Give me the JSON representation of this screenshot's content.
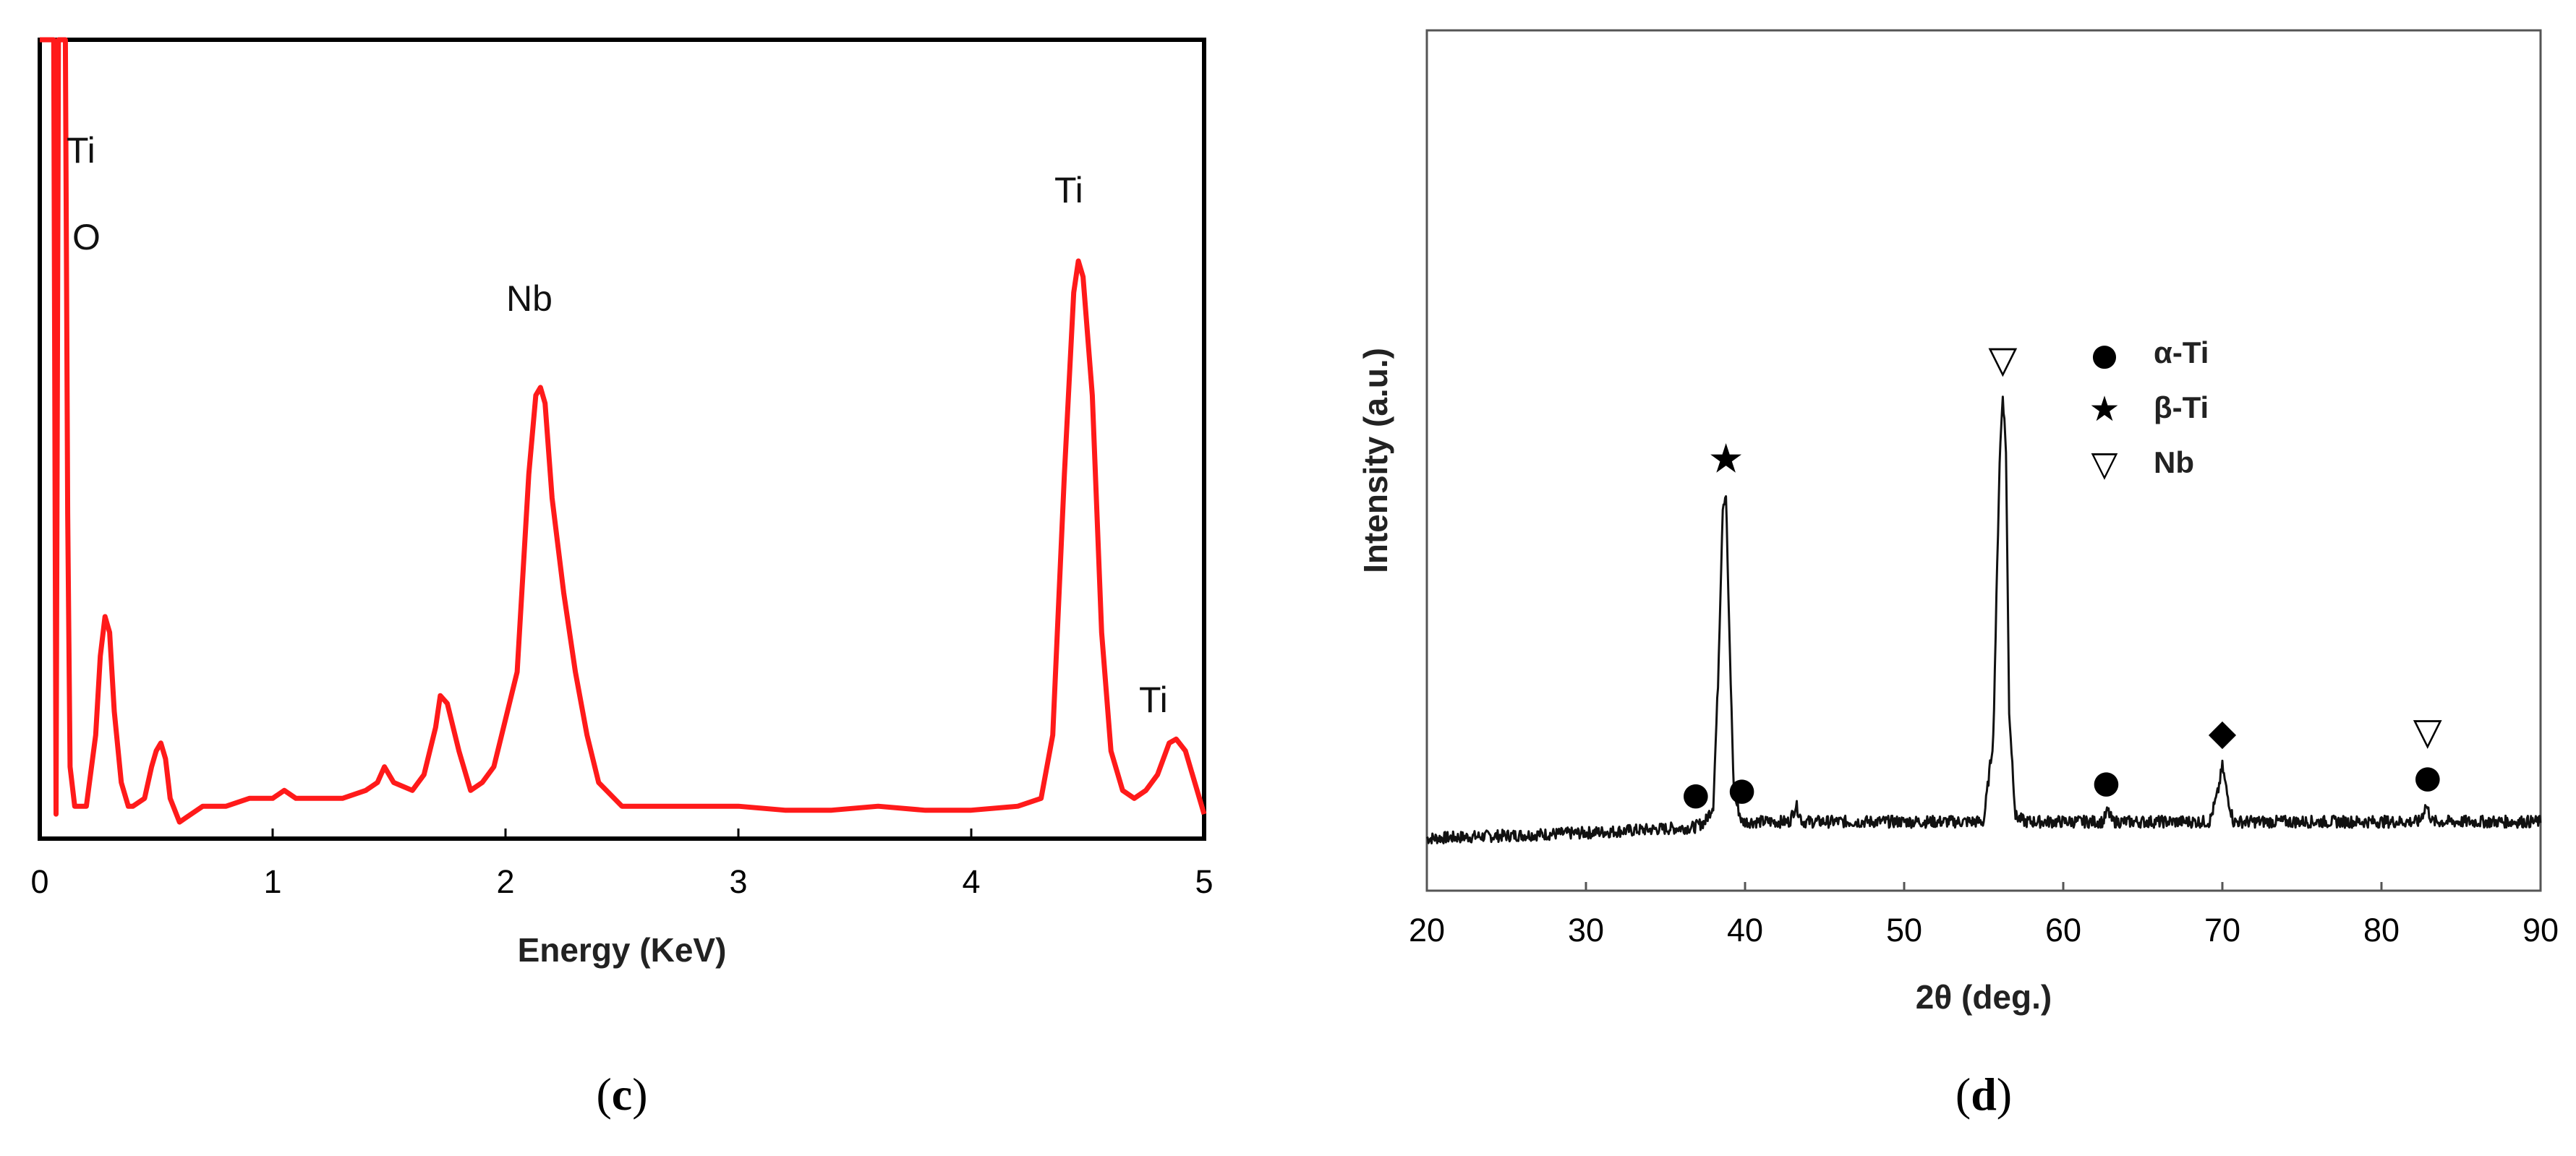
{
  "chart_data": [
    {
      "type": "line",
      "panel": "(c)",
      "xlabel": "Energy (KeV)",
      "ylabel": "",
      "xlim": [
        0,
        5
      ],
      "ylim": [
        0,
        100
      ],
      "x_ticks": [
        "0",
        "1",
        "2",
        "3",
        "4",
        "5"
      ],
      "color": "#ff1a1a",
      "series": [
        {
          "x": [
            0.0,
            0.05,
            0.06,
            0.07,
            0.08,
            0.09,
            0.1,
            0.11,
            0.12,
            0.13,
            0.15,
            0.2,
            0.24,
            0.26,
            0.28,
            0.3,
            0.32,
            0.35,
            0.38,
            0.4,
            0.45,
            0.48,
            0.5,
            0.52,
            0.54,
            0.56,
            0.6,
            0.65,
            0.7,
            0.8,
            0.9,
            1.0,
            1.05,
            1.1,
            1.2,
            1.3,
            1.4,
            1.45,
            1.48,
            1.52,
            1.6,
            1.65,
            1.7,
            1.72,
            1.75,
            1.8,
            1.85,
            1.9,
            1.95,
            2.0,
            2.05,
            2.1,
            2.13,
            2.15,
            2.17,
            2.2,
            2.25,
            2.3,
            2.35,
            2.4,
            2.5,
            2.6,
            2.8,
            3.0,
            3.2,
            3.4,
            3.6,
            3.8,
            4.0,
            4.2,
            4.3,
            4.35,
            4.4,
            4.44,
            4.46,
            4.48,
            4.52,
            4.56,
            4.6,
            4.65,
            4.7,
            4.75,
            4.8,
            4.85,
            4.88,
            4.92,
            4.96,
            5.0
          ],
          "y": [
            100,
            100,
            100,
            2,
            100,
            100,
            100,
            100,
            40,
            8,
            3,
            3,
            12,
            22,
            27,
            25,
            15,
            6,
            3,
            3,
            4,
            8,
            10,
            11,
            9,
            4,
            1,
            2,
            3,
            3,
            4,
            4,
            5,
            4,
            4,
            4,
            5,
            6,
            8,
            6,
            5,
            7,
            13,
            17,
            16,
            10,
            5,
            6,
            8,
            14,
            20,
            45,
            55,
            56,
            54,
            42,
            30,
            20,
            12,
            6,
            3,
            3,
            3,
            3,
            2.5,
            2.5,
            3,
            2.5,
            2.5,
            3,
            4,
            12,
            45,
            68,
            72,
            70,
            55,
            25,
            10,
            5,
            4,
            5,
            7,
            11,
            11.5,
            10,
            6,
            2
          ]
        }
      ],
      "annotations": [
        "Ti",
        "O",
        "Nb",
        "Ti",
        "Ti"
      ]
    },
    {
      "type": "line",
      "panel": "(d)",
      "xlabel": "2θ (deg.)",
      "ylabel": "Intensity (a.u.)",
      "xlim": [
        20,
        90
      ],
      "ylim": [
        0,
        100
      ],
      "x_ticks": [
        "20",
        "30",
        "40",
        "50",
        "60",
        "70",
        "80",
        "90"
      ],
      "color": "#111111",
      "series": [
        {
          "x": [
            20,
            30,
            36.8,
            37.5,
            38.0,
            38.3,
            38.6,
            38.8,
            39.0,
            39.3,
            39.8,
            40.5,
            42.8,
            43.2,
            43.6,
            46.5,
            47.5,
            55.0,
            55.6,
            56.0,
            56.2,
            56.4,
            56.6,
            57.0,
            57.6,
            62.5,
            62.8,
            63.1,
            69.2,
            69.7,
            70.0,
            70.3,
            70.7,
            82.4,
            82.8,
            83.2,
            90
          ],
          "y": [
            2,
            3,
            4,
            5,
            8,
            30,
            62,
            64,
            40,
            10,
            5,
            5,
            5,
            8,
            5,
            5,
            5,
            5,
            20,
            70,
            82,
            72,
            25,
            6,
            5,
            5,
            7,
            5,
            5,
            10,
            15,
            10,
            5,
            5,
            8,
            5,
            5
          ]
        }
      ],
      "legend": [
        {
          "marker": "●",
          "label": "α-Ti"
        },
        {
          "marker": "★",
          "label": "β-Ti"
        },
        {
          "marker": "▽",
          "label": "Nb"
        }
      ],
      "peak_markers": [
        {
          "marker": "●",
          "x": 36.9
        },
        {
          "marker": "★",
          "x": 38.8
        },
        {
          "marker": "●",
          "x": 39.8
        },
        {
          "marker": "▽",
          "x": 56.2
        },
        {
          "marker": "●",
          "x": 62.7
        },
        {
          "marker": "◆",
          "x": 70.0
        },
        {
          "marker": "▽",
          "x": 82.9
        },
        {
          "marker": "●",
          "x": 82.9
        }
      ]
    }
  ]
}
